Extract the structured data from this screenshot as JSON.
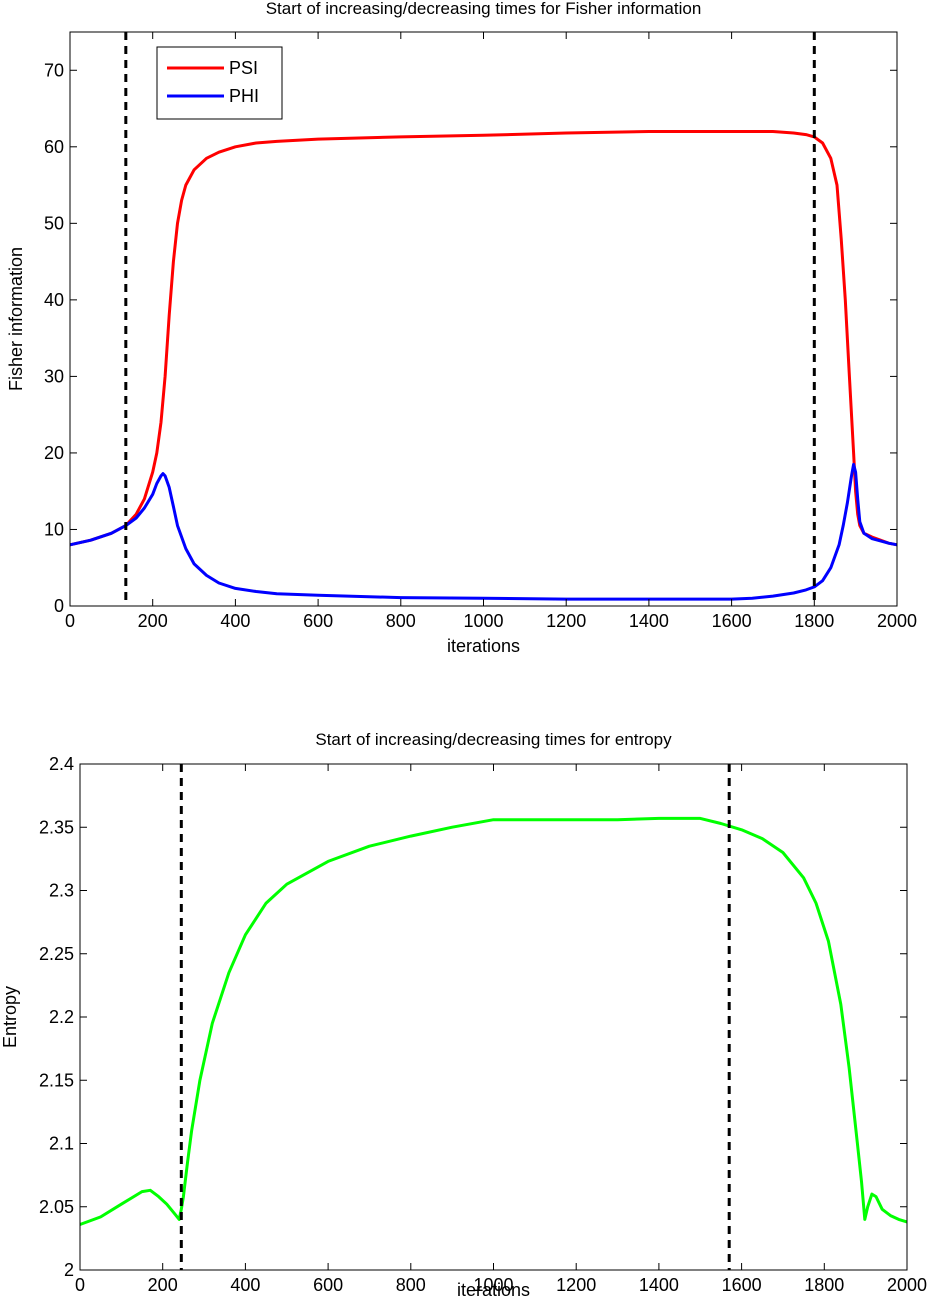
{
  "chart_data": [
    {
      "type": "line",
      "title": "Start of increasing/decreasing times for Fisher information",
      "xlabel": "iterations",
      "ylabel": "Fisher information",
      "xlim": [
        0,
        2000
      ],
      "ylim": [
        0,
        75
      ],
      "xticks": [
        "0",
        "200",
        "400",
        "600",
        "800",
        "1000",
        "1200",
        "1400",
        "1600",
        "1800",
        "2000"
      ],
      "yticks": [
        "0",
        "10",
        "20",
        "30",
        "40",
        "50",
        "60",
        "70"
      ],
      "grid": false,
      "legend": "top-left",
      "vlines": [
        135,
        1800
      ],
      "series": [
        {
          "name": "PSI",
          "color": "#ff0000",
          "x": [
            0,
            50,
            100,
            135,
            160,
            180,
            200,
            210,
            220,
            230,
            240,
            250,
            260,
            270,
            280,
            300,
            330,
            360,
            400,
            450,
            500,
            600,
            800,
            1000,
            1200,
            1400,
            1600,
            1700,
            1750,
            1780,
            1800,
            1820,
            1840,
            1855,
            1865,
            1875,
            1885,
            1895,
            1900,
            1905,
            1910,
            1920,
            1940,
            1960,
            1980,
            2000
          ],
          "y": [
            8,
            8.6,
            9.5,
            10.5,
            12,
            14,
            17.5,
            20,
            24,
            30,
            38,
            45,
            50,
            53,
            55,
            57,
            58.5,
            59.3,
            60,
            60.5,
            60.7,
            61,
            61.3,
            61.5,
            61.8,
            62,
            62,
            62,
            61.8,
            61.6,
            61.3,
            60.5,
            58.5,
            55,
            48,
            40,
            30,
            20,
            15,
            12,
            10.5,
            9.5,
            9,
            8.6,
            8.2,
            8
          ]
        },
        {
          "name": "PHI",
          "color": "#0000ff",
          "x": [
            0,
            50,
            100,
            135,
            160,
            180,
            200,
            210,
            220,
            225,
            230,
            240,
            250,
            260,
            280,
            300,
            330,
            360,
            400,
            450,
            500,
            600,
            800,
            1000,
            1200,
            1400,
            1600,
            1650,
            1700,
            1750,
            1780,
            1800,
            1820,
            1840,
            1860,
            1870,
            1880,
            1890,
            1895,
            1900,
            1905,
            1910,
            1920,
            1940,
            1960,
            1980,
            2000
          ],
          "y": [
            8,
            8.6,
            9.5,
            10.5,
            11.5,
            12.8,
            14.6,
            16,
            17,
            17.3,
            17,
            15.5,
            13,
            10.5,
            7.5,
            5.5,
            4,
            3,
            2.3,
            1.9,
            1.6,
            1.4,
            1.1,
            1.0,
            0.9,
            0.9,
            0.9,
            1.0,
            1.3,
            1.7,
            2.1,
            2.5,
            3.3,
            5,
            8,
            10.5,
            13.5,
            17,
            18.5,
            17.5,
            14,
            11,
            9.5,
            8.8,
            8.5,
            8.2,
            8
          ]
        }
      ]
    },
    {
      "type": "line",
      "title": "Start of increasing/decreasing times for entropy",
      "xlabel": "iterations",
      "ylabel": "Entropy",
      "xlim": [
        0,
        2000
      ],
      "ylim": [
        2,
        2.4
      ],
      "xticks": [
        "0",
        "200",
        "400",
        "600",
        "800",
        "1000",
        "1200",
        "1400",
        "1600",
        "1800",
        "2000"
      ],
      "yticks": [
        "2",
        "2.05",
        "2.1",
        "2.15",
        "2.2",
        "2.25",
        "2.3",
        "2.35",
        "2.4"
      ],
      "grid": false,
      "legend": "none",
      "vlines": [
        245,
        1570
      ],
      "series": [
        {
          "color": "#00ff00",
          "x": [
            0,
            50,
            100,
            150,
            170,
            190,
            210,
            230,
            240,
            245,
            250,
            260,
            270,
            290,
            320,
            360,
            400,
            450,
            500,
            600,
            700,
            800,
            900,
            1000,
            1100,
            1200,
            1300,
            1400,
            1500,
            1550,
            1600,
            1650,
            1700,
            1750,
            1780,
            1810,
            1840,
            1860,
            1880,
            1890,
            1898,
            1905,
            1915,
            1925,
            1940,
            1960,
            1980,
            2000
          ],
          "y": [
            2.036,
            2.042,
            2.052,
            2.062,
            2.063,
            2.058,
            2.052,
            2.044,
            2.04,
            2.048,
            2.058,
            2.085,
            2.11,
            2.15,
            2.195,
            2.235,
            2.265,
            2.29,
            2.305,
            2.323,
            2.335,
            2.343,
            2.35,
            2.356,
            2.356,
            2.356,
            2.356,
            2.357,
            2.357,
            2.353,
            2.348,
            2.341,
            2.33,
            2.31,
            2.29,
            2.26,
            2.21,
            2.16,
            2.1,
            2.07,
            2.04,
            2.05,
            2.06,
            2.058,
            2.048,
            2.043,
            2.04,
            2.038
          ]
        }
      ]
    }
  ]
}
